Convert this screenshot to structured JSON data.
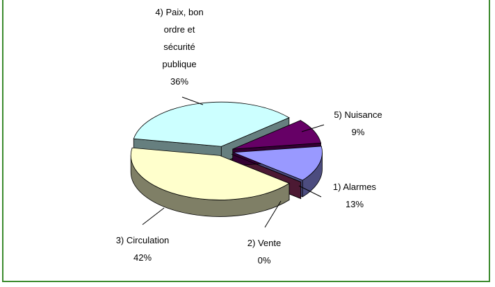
{
  "chart_data": {
    "type": "pie",
    "categories": [
      "1) Alarmes",
      "2) Vente",
      "3) Circulation",
      "4) Paix, bon ordre et sécurité publique",
      "5) Nuisance"
    ],
    "values": [
      13,
      0,
      42,
      36,
      9
    ],
    "value_labels": [
      "13%",
      "0%",
      "42%",
      "36%",
      "9%"
    ],
    "colors": [
      "#9999ff",
      "#993366",
      "#ffffcc",
      "#ccffff",
      "#660066"
    ],
    "exploded": true,
    "three_d": true
  }
}
